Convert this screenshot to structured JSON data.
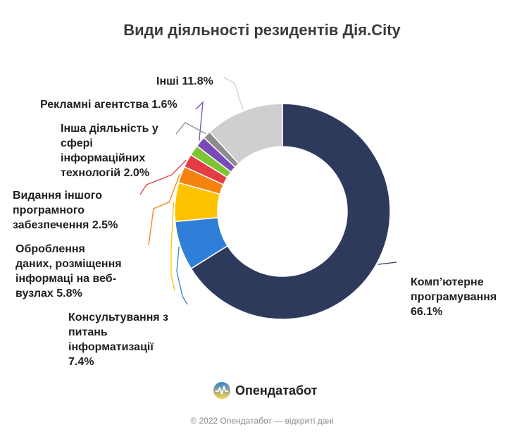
{
  "title": "Види діяльності резидентів Дія.City",
  "chart_data": {
    "type": "pie",
    "donut": true,
    "slices": [
      {
        "label": "Комп’ютерне програмування",
        "value": 66.1,
        "value_text": "66.1%",
        "color": "#2e3a5c"
      },
      {
        "label": "Консультування з питань інформатизації",
        "value": 7.4,
        "value_text": "7.4%",
        "color": "#2f7fd8"
      },
      {
        "label": "Оброблення даних, розміщення інформаці на веб-вузлах",
        "value": 5.8,
        "value_text": "5.8%",
        "color": "#ffc200"
      },
      {
        "label": "Видання іншого програмного забезпечення",
        "value": 2.5,
        "value_text": "2.5%",
        "color": "#f5820f"
      },
      {
        "label": "Інша діяльність у сфері інформаційних технологій",
        "value": 2.0,
        "value_text": "2.0%",
        "color": "#e63b45"
      },
      {
        "label": "",
        "value": 1.6,
        "value_text": "",
        "color": "#7fc435"
      },
      {
        "label": "Рекламні агентства",
        "value": 1.6,
        "value_text": "1.6%",
        "color": "#7a4ab8"
      },
      {
        "label": "",
        "value": 1.2,
        "value_text": "",
        "color": "#8c8c8c"
      },
      {
        "label": "Інші",
        "value": 11.8,
        "value_text": "11.8%",
        "color": "#cfcfcf"
      }
    ]
  },
  "labels": {
    "komp_1": "Комп’ютерне",
    "komp_2": "програмування",
    "komp_3": "66.1%",
    "kons_1": "Консультування з",
    "kons_2": "питань",
    "kons_3": "інформатизації",
    "kons_4": "7.4%",
    "obr_1": "Оброблення",
    "obr_2": "даних, розміщення",
    "obr_3": "інформаці на веб-",
    "obr_4": "вузлах 5.8%",
    "vyd_1": "Видання іншого",
    "vyd_2": "програмного",
    "vyd_3": "забезпечення 2.5%",
    "insha_1": "Інша діяльність у",
    "insha_2": "сфері",
    "insha_3": "інформаційних",
    "insha_4": "технологій 2.0%",
    "rekl": "Рекламні агентства 1.6%",
    "inshi": "Інші 11.8%"
  },
  "logo_text": "Опендатабот",
  "footer": "© 2022 Опендатабот — відкриті дані"
}
